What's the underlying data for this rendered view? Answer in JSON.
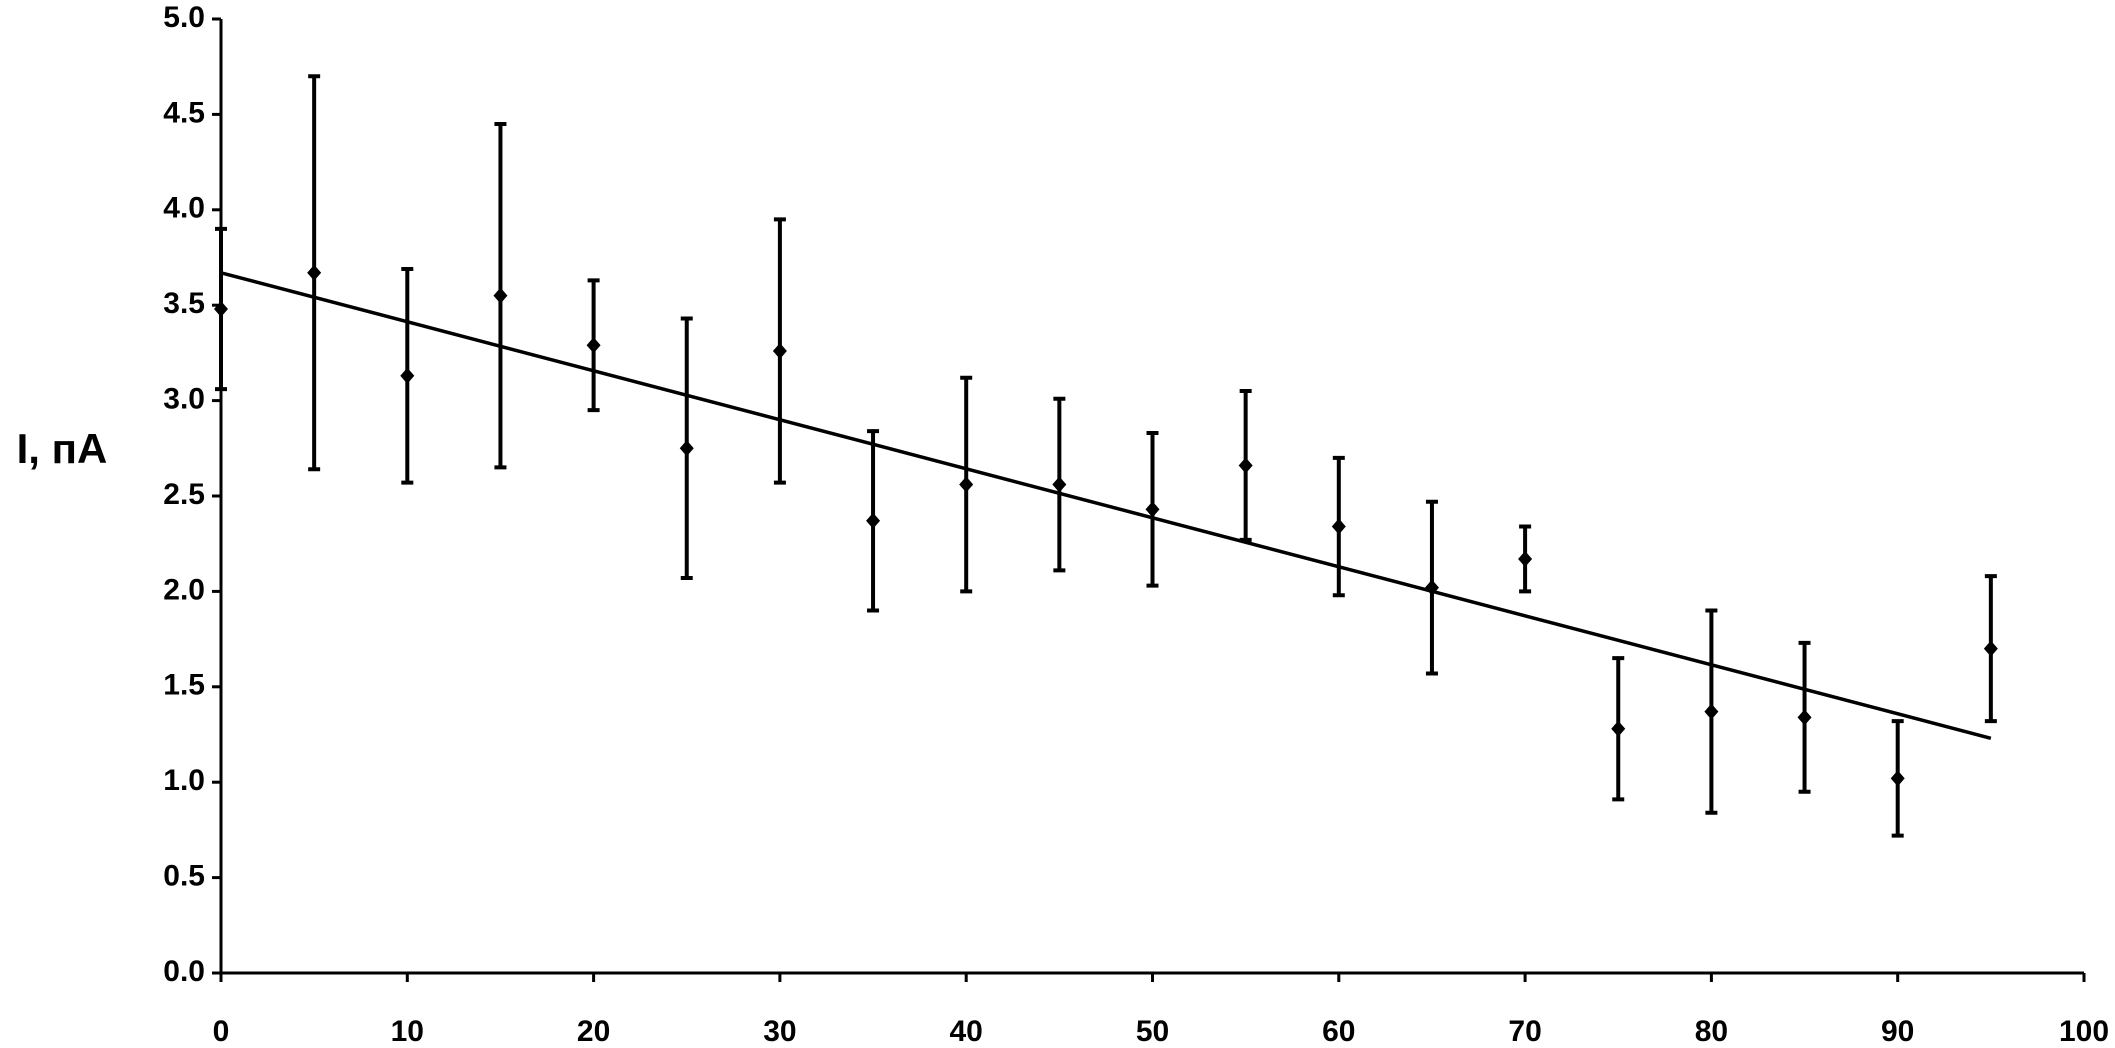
{
  "chart_data": {
    "type": "scatter",
    "ylabel": "I, пА",
    "x": [
      0,
      5,
      10,
      15,
      20,
      25,
      30,
      35,
      40,
      45,
      50,
      55,
      60,
      65,
      70,
      75,
      80,
      85,
      90,
      95
    ],
    "values": [
      3.48,
      3.67,
      3.13,
      3.55,
      3.29,
      2.75,
      3.26,
      2.37,
      2.56,
      2.56,
      2.43,
      2.66,
      2.34,
      2.02,
      2.17,
      1.28,
      1.37,
      1.34,
      1.02,
      1.7
    ],
    "errors": [
      0.42,
      1.03,
      0.56,
      0.9,
      0.34,
      0.68,
      0.69,
      0.47,
      0.56,
      0.45,
      0.4,
      0.39,
      0.36,
      0.45,
      0.17,
      0.37,
      0.53,
      0.39,
      0.3,
      0.38
    ],
    "color": "#000000",
    "trendline": {
      "x": [
        0,
        95
      ],
      "y": [
        3.67,
        1.23
      ]
    },
    "xlim": [
      0,
      100
    ],
    "xticks": [
      0,
      10,
      20,
      30,
      40,
      50,
      60,
      70,
      80,
      90,
      100
    ],
    "ylim": [
      0,
      5
    ],
    "yticks": [
      {
        "value": 0,
        "label": "0.0"
      },
      {
        "value": 0.5,
        "label": "0.5"
      },
      {
        "value": 1,
        "label": "1.0"
      },
      {
        "value": 1.5,
        "label": "1.5"
      },
      {
        "value": 2,
        "label": "2.0"
      },
      {
        "value": 2.5,
        "label": "2.5"
      },
      {
        "value": 3,
        "label": "3.0"
      },
      {
        "value": 3.5,
        "label": "3.5"
      },
      {
        "value": 4,
        "label": "4.0"
      },
      {
        "value": 4.5,
        "label": "4.5"
      },
      {
        "value": 5,
        "label": "5.0"
      }
    ]
  }
}
